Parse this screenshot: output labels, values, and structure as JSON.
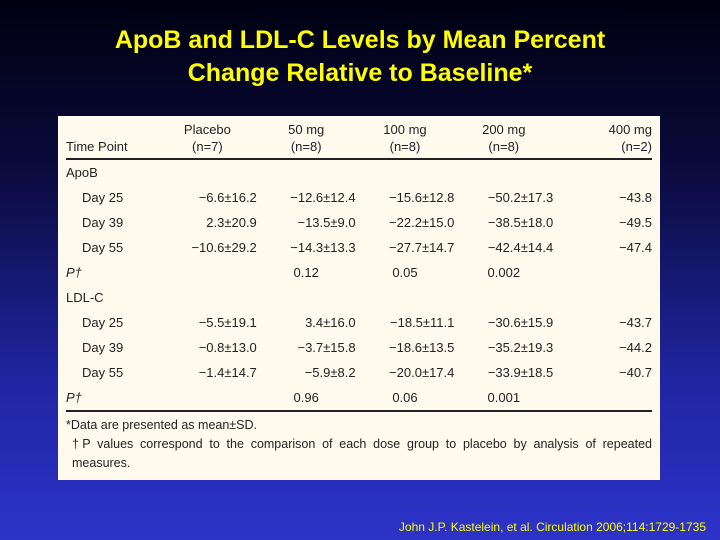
{
  "title": {
    "line1": "ApoB and LDL-C Levels by Mean Percent",
    "line2": "Change Relative to Baseline*"
  },
  "table": {
    "header_row1": [
      "",
      "Placebo",
      "50 mg",
      "100 mg",
      "200 mg",
      "400 mg"
    ],
    "header_row2": [
      "Time Point",
      "(n=7)",
      "(n=8)",
      "(n=8)",
      "(n=8)",
      "(n=2)"
    ],
    "apob": {
      "label": "ApoB",
      "rows": [
        [
          "Day 25",
          "−6.6±16.2",
          "−12.6±12.4",
          "−15.6±12.8",
          "−50.2±17.3",
          "−43.8"
        ],
        [
          "Day 39",
          "2.3±20.9",
          "−13.5±9.0",
          "−22.2±15.0",
          "−38.5±18.0",
          "−49.5"
        ],
        [
          "Day 55",
          "−10.6±29.2",
          "−14.3±13.3",
          "−27.7±14.7",
          "−42.4±14.4",
          "−47.4"
        ]
      ],
      "p": [
        "P†",
        "",
        "0.12",
        "0.05",
        "0.002",
        ""
      ]
    },
    "ldlc": {
      "label": "LDL-C",
      "rows": [
        [
          "Day 25",
          "−5.5±19.1",
          "3.4±16.0",
          "−18.5±11.1",
          "−30.6±15.9",
          "−43.7"
        ],
        [
          "Day 39",
          "−0.8±13.0",
          "−3.7±15.8",
          "−18.6±13.5",
          "−35.2±19.3",
          "−44.2"
        ],
        [
          "Day 55",
          "−1.4±14.7",
          "−5.9±8.2",
          "−20.0±17.4",
          "−33.9±18.5",
          "−40.7"
        ]
      ],
      "p": [
        "P†",
        "",
        "0.96",
        "0.06",
        "0.001",
        ""
      ]
    },
    "footnote1": "*Data are presented as mean±SD.",
    "footnote2": "†P values correspond to the comparison of each dose group to placebo by analysis of repeated measures."
  },
  "citation": "John J.P. Kastelein, et al. Circulation 2006;114:1729-1735"
}
